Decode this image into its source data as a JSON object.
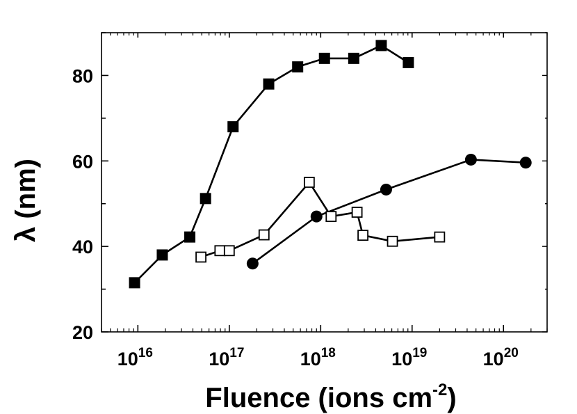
{
  "chart_data": {
    "type": "scatter",
    "title": "",
    "xlabel": "Fluence (ions cm",
    "xlabel_sup": "-2",
    "xlabel_close": ")",
    "ylabel": "λ (nm)",
    "xscale": "log",
    "xlim": [
      4000000000000000.0,
      3e+20
    ],
    "ylim": [
      20,
      90
    ],
    "grid": false,
    "legend": "none",
    "x_ticks": [
      {
        "value": 1e+16,
        "base": "10",
        "exp": "16"
      },
      {
        "value": 1e+17,
        "base": "10",
        "exp": "17"
      },
      {
        "value": 1e+18,
        "base": "10",
        "exp": "18"
      },
      {
        "value": 1e+19,
        "base": "10",
        "exp": "19"
      },
      {
        "value": 1e+20,
        "base": "10",
        "exp": "20"
      }
    ],
    "y_ticks": [
      {
        "value": 20,
        "label": "20"
      },
      {
        "value": 40,
        "label": "40"
      },
      {
        "value": 60,
        "label": "60"
      },
      {
        "value": 80,
        "label": "80"
      }
    ],
    "series": [
      {
        "marker": "filled-square",
        "color": "#000000",
        "points": [
          {
            "x": 9200000000000000.0,
            "y": 31.5
          },
          {
            "x": 1.85e+16,
            "y": 38
          },
          {
            "x": 3.7e+16,
            "y": 42.2
          },
          {
            "x": 5.5e+16,
            "y": 51.2
          },
          {
            "x": 1.1e+17,
            "y": 68
          },
          {
            "x": 2.7e+17,
            "y": 78
          },
          {
            "x": 5.6e+17,
            "y": 82
          },
          {
            "x": 1.1e+18,
            "y": 84
          },
          {
            "x": 2.3e+18,
            "y": 84
          },
          {
            "x": 4.6e+18,
            "y": 87
          },
          {
            "x": 9.1e+18,
            "y": 83
          }
        ]
      },
      {
        "marker": "open-square",
        "color": "#000000",
        "points": [
          {
            "x": 4.9e+16,
            "y": 37.5
          },
          {
            "x": 7.9e+16,
            "y": 39
          },
          {
            "x": 1e+17,
            "y": 39
          },
          {
            "x": 2.4e+17,
            "y": 42.7
          },
          {
            "x": 7.5e+17,
            "y": 55
          },
          {
            "x": 1.3e+18,
            "y": 47
          },
          {
            "x": 2.5e+18,
            "y": 48
          },
          {
            "x": 2.9e+18,
            "y": 42.6
          },
          {
            "x": 6.1e+18,
            "y": 41.2
          },
          {
            "x": 2e+19,
            "y": 42.2
          }
        ]
      },
      {
        "marker": "filled-circle",
        "color": "#000000",
        "points": [
          {
            "x": 1.8e+17,
            "y": 36
          },
          {
            "x": 9e+17,
            "y": 47
          },
          {
            "x": 5.2e+18,
            "y": 53.3
          },
          {
            "x": 4.4e+19,
            "y": 60.3
          },
          {
            "x": 1.75e+20,
            "y": 59.6
          }
        ]
      }
    ]
  }
}
